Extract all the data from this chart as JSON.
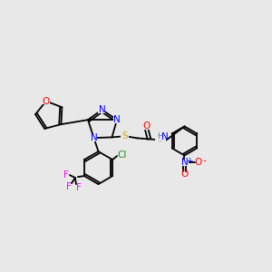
{
  "bg_color": "#e8e8e8",
  "atom_colors": {
    "N": "#0000ff",
    "O": "#ff0000",
    "S": "#ccaa00",
    "F": "#ff00ff",
    "Cl": "#228822",
    "H": "#448888",
    "C": "#000000",
    "plus": "#0000ff",
    "minus": "#ff0000"
  },
  "bond_color": "#000000",
  "bond_lw": 1.3,
  "figsize": [
    3.0,
    3.0
  ],
  "dpi": 100
}
